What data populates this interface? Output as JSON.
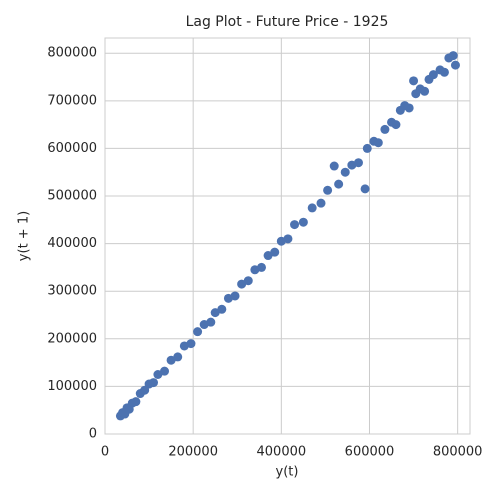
{
  "chart_data": {
    "type": "scatter",
    "title": "Lag Plot - Future Price - 1925",
    "x_label": "y(t)",
    "y_label": "y(t + 1)",
    "color": "#4c72b0",
    "grid": true,
    "x": [
      35000,
      40000,
      45000,
      50000,
      55000,
      62000,
      70000,
      80000,
      90000,
      100000,
      110000,
      120000,
      135000,
      150000,
      165000,
      180000,
      195000,
      210000,
      225000,
      240000,
      250000,
      265000,
      280000,
      295000,
      310000,
      325000,
      340000,
      355000,
      370000,
      385000,
      400000,
      415000,
      430000,
      450000,
      470000,
      490000,
      505000,
      520000,
      530000,
      545000,
      560000,
      575000,
      590000,
      595000,
      610000,
      620000,
      635000,
      650000,
      660000,
      670000,
      680000,
      690000,
      700000,
      705000,
      715000,
      725000,
      735000,
      745000,
      760000,
      770000,
      780000,
      790000,
      795000
    ],
    "values": [
      38000,
      45000,
      42000,
      55000,
      52000,
      65000,
      68000,
      85000,
      92000,
      105000,
      108000,
      125000,
      132000,
      155000,
      162000,
      185000,
      190000,
      215000,
      230000,
      235000,
      255000,
      262000,
      285000,
      290000,
      315000,
      322000,
      345000,
      350000,
      375000,
      382000,
      405000,
      410000,
      440000,
      445000,
      475000,
      485000,
      512000,
      563000,
      525000,
      550000,
      565000,
      570000,
      515000,
      600000,
      615000,
      612000,
      640000,
      655000,
      650000,
      680000,
      690000,
      685000,
      742000,
      715000,
      725000,
      720000,
      745000,
      755000,
      765000,
      760000,
      790000,
      795000,
      775000
    ],
    "xlim": [
      0,
      828000
    ],
    "ylim": [
      0,
      832000
    ],
    "xticks": [
      0,
      200000,
      400000,
      600000,
      800000
    ],
    "yticks": [
      0,
      100000,
      200000,
      300000,
      400000,
      500000,
      600000,
      700000,
      800000
    ]
  }
}
